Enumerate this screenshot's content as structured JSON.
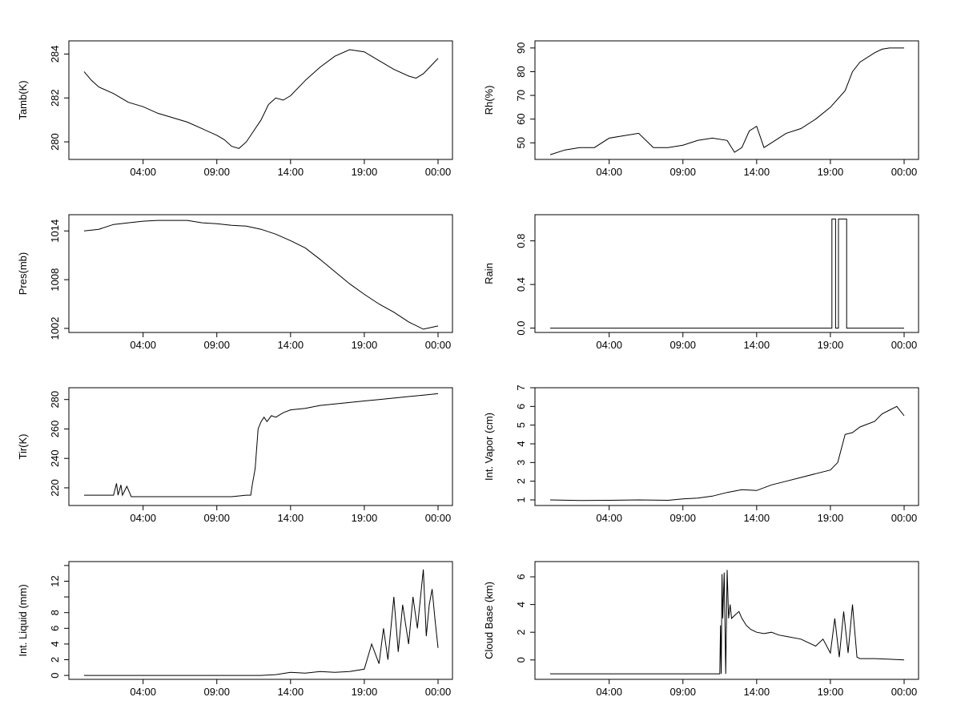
{
  "chart_data": [
    {
      "type": "line",
      "ylabel": "Tamb(K)",
      "xlim": [
        0,
        24
      ],
      "ylim": [
        279.2,
        284.6
      ],
      "yticks": [
        280,
        282,
        284
      ],
      "yticklabels": [
        "280",
        "282",
        "284"
      ],
      "xticks": [
        4,
        9,
        14,
        19,
        24
      ],
      "xticklabels": [
        "04:00",
        "09:00",
        "14:00",
        "19:00",
        "00:00"
      ],
      "x": [
        0,
        0.5,
        1,
        2,
        3,
        4,
        5,
        6,
        7,
        8,
        9,
        9.5,
        10,
        10.5,
        11,
        11.5,
        12,
        12.5,
        13,
        13.5,
        14,
        15,
        16,
        17,
        18,
        19,
        20,
        21,
        22,
        22.5,
        23,
        24
      ],
      "y": [
        283.2,
        282.8,
        282.5,
        282.2,
        281.8,
        281.6,
        281.3,
        281.1,
        280.9,
        280.6,
        280.3,
        280.1,
        279.8,
        279.7,
        280,
        280.5,
        281,
        281.7,
        282,
        281.9,
        282.1,
        282.8,
        283.4,
        283.9,
        284.2,
        284.1,
        283.7,
        283.3,
        283,
        282.9,
        283.1,
        283.8
      ]
    },
    {
      "type": "line",
      "ylabel": "Rh(%)",
      "xlim": [
        0,
        24
      ],
      "ylim": [
        43,
        93
      ],
      "yticks": [
        50,
        60,
        70,
        80,
        90
      ],
      "yticklabels": [
        "50",
        "60",
        "70",
        "80",
        "90"
      ],
      "xticks": [
        4,
        9,
        14,
        19,
        24
      ],
      "xticklabels": [
        "04:00",
        "09:00",
        "14:00",
        "19:00",
        "00:00"
      ],
      "x": [
        0,
        1,
        2,
        3,
        4,
        5,
        6,
        7,
        8,
        9,
        10,
        11,
        12,
        12.5,
        13,
        13.5,
        14,
        14.5,
        15,
        16,
        17,
        18,
        19,
        20,
        20.5,
        21,
        22,
        22.5,
        23,
        24
      ],
      "y": [
        45,
        47,
        48,
        48,
        52,
        53,
        54,
        48,
        48,
        49,
        51,
        52,
        51,
        46,
        48,
        55,
        57,
        48,
        50,
        54,
        56,
        60,
        65,
        72,
        80,
        84,
        88,
        89.5,
        90,
        90
      ]
    },
    {
      "type": "line",
      "ylabel": "Pres(mb)",
      "xlim": [
        0,
        24
      ],
      "ylim": [
        1001.5,
        1016
      ],
      "yticks": [
        1002,
        1008,
        1014
      ],
      "yticklabels": [
        "1002",
        "1008",
        "1014"
      ],
      "xticks": [
        4,
        9,
        14,
        19,
        24
      ],
      "xticklabels": [
        "04:00",
        "09:00",
        "14:00",
        "19:00",
        "00:00"
      ],
      "x": [
        0,
        1,
        2,
        3,
        4,
        5,
        6,
        7,
        8,
        9,
        10,
        11,
        12,
        13,
        14,
        15,
        16,
        17,
        18,
        19,
        20,
        21,
        22,
        23,
        24
      ],
      "y": [
        1014,
        1014.2,
        1014.8,
        1015,
        1015.2,
        1015.3,
        1015.3,
        1015.3,
        1015,
        1014.9,
        1014.7,
        1014.6,
        1014.2,
        1013.6,
        1012.8,
        1011.9,
        1010.5,
        1009,
        1007.5,
        1006.2,
        1005,
        1004,
        1002.8,
        1001.9,
        1002.3
      ]
    },
    {
      "type": "line",
      "ylabel": "Rain",
      "xlim": [
        0,
        24
      ],
      "ylim": [
        -0.04,
        1.04
      ],
      "yticks": [
        0,
        0.4,
        0.8
      ],
      "yticklabels": [
        "0.0",
        "0.4",
        "0.8"
      ],
      "xticks": [
        4,
        9,
        14,
        19,
        24
      ],
      "xticklabels": [
        "04:00",
        "09:00",
        "14:00",
        "19:00",
        "00:00"
      ],
      "x": [
        0,
        19.1,
        19.1,
        19.35,
        19.35,
        19.55,
        19.55,
        20.1,
        20.1,
        20.25,
        20.25,
        24
      ],
      "y": [
        0,
        0,
        1,
        1,
        0,
        0,
        1,
        1,
        0,
        0,
        0,
        0
      ]
    },
    {
      "type": "line",
      "ylabel": "Tir(K)",
      "xlim": [
        0,
        24
      ],
      "ylim": [
        208,
        288
      ],
      "yticks": [
        220,
        240,
        260,
        280
      ],
      "yticklabels": [
        "220",
        "240",
        "260",
        "280"
      ],
      "xticks": [
        4,
        9,
        14,
        19,
        24
      ],
      "xticklabels": [
        "04:00",
        "09:00",
        "14:00",
        "19:00",
        "00:00"
      ],
      "x": [
        0,
        2,
        2.2,
        2.3,
        2.5,
        2.6,
        2.9,
        3.2,
        4,
        6,
        8,
        10,
        11,
        11.3,
        11.4,
        11.6,
        11.8,
        12,
        12.2,
        12.4,
        12.7,
        13,
        13.5,
        14,
        15,
        16,
        17,
        18,
        19,
        20,
        21,
        22,
        23,
        24
      ],
      "y": [
        215,
        215,
        223,
        215,
        222,
        215,
        221,
        214,
        214,
        214,
        214,
        214,
        215,
        215,
        222,
        233,
        260,
        265,
        268,
        265,
        269,
        268,
        271,
        273,
        274,
        276,
        277,
        278,
        279,
        280,
        281,
        282,
        283,
        284
      ]
    },
    {
      "type": "line",
      "ylabel": "Int. Vapor (cm)",
      "xlim": [
        0,
        24
      ],
      "ylim": [
        0.7,
        7
      ],
      "yticks": [
        1,
        2,
        3,
        4,
        5,
        6,
        7
      ],
      "yticklabels": [
        "1",
        "2",
        "3",
        "4",
        "5",
        "6",
        "7"
      ],
      "xticks": [
        4,
        9,
        14,
        19,
        24
      ],
      "xticklabels": [
        "04:00",
        "09:00",
        "14:00",
        "19:00",
        "00:00"
      ],
      "x": [
        0,
        2,
        4,
        6,
        8,
        9,
        10,
        11,
        12,
        13,
        14,
        15,
        16,
        17,
        18,
        19,
        19.5,
        20,
        20.5,
        21,
        22,
        22.5,
        23,
        23.5,
        24
      ],
      "y": [
        1,
        0.97,
        0.98,
        1,
        0.98,
        1.05,
        1.1,
        1.2,
        1.4,
        1.55,
        1.5,
        1.8,
        2,
        2.2,
        2.4,
        2.6,
        3,
        4.5,
        4.6,
        4.9,
        5.2,
        5.6,
        5.8,
        6,
        5.5
      ]
    },
    {
      "type": "line",
      "ylabel": "Int. Liquid (mm)",
      "xlim": [
        0,
        24
      ],
      "ylim": [
        -0.5,
        14.5
      ],
      "yticks": [
        0,
        2,
        4,
        6,
        8,
        10,
        12,
        14
      ],
      "yticklabels": [
        "0",
        "2",
        "4",
        "6",
        "8",
        "",
        "12",
        ""
      ],
      "xticks": [
        4,
        9,
        14,
        19,
        24
      ],
      "xticklabels": [
        "04:00",
        "09:00",
        "14:00",
        "19:00",
        "00:00"
      ],
      "x": [
        0,
        4,
        8,
        12,
        13,
        14,
        15,
        16,
        17,
        18,
        19,
        19.5,
        20,
        20.3,
        20.6,
        21,
        21.3,
        21.6,
        22,
        22.3,
        22.6,
        23,
        23.2,
        23.4,
        23.6,
        23.8,
        24
      ],
      "y": [
        0,
        0,
        0,
        0,
        0.1,
        0.4,
        0.3,
        0.5,
        0.4,
        0.5,
        0.8,
        4,
        1.5,
        6,
        2,
        10,
        3,
        9,
        4,
        10,
        6,
        13.5,
        5,
        9,
        11,
        7,
        3.5
      ]
    },
    {
      "type": "line",
      "ylabel": "Cloud Base (km)",
      "xlim": [
        0,
        24
      ],
      "ylim": [
        -1.4,
        7.1
      ],
      "yticks": [
        0,
        2,
        4,
        6
      ],
      "yticklabels": [
        "0",
        "2",
        "4",
        "6"
      ],
      "xticks": [
        4,
        9,
        14,
        19,
        24
      ],
      "xticklabels": [
        "04:00",
        "09:00",
        "14:00",
        "19:00",
        "00:00"
      ],
      "x": [
        0,
        11.5,
        11.55,
        11.6,
        11.65,
        11.7,
        11.8,
        11.9,
        12.0,
        12.1,
        12.2,
        12.3,
        12.5,
        12.8,
        13,
        13.3,
        13.6,
        14,
        14.5,
        15,
        15.5,
        16,
        17,
        18,
        18.5,
        19,
        19.3,
        19.6,
        19.9,
        20.2,
        20.5,
        20.8,
        21,
        22,
        23,
        24
      ],
      "y": [
        -1,
        -1,
        2.5,
        -1,
        6.2,
        3,
        6.3,
        -1,
        6.5,
        3,
        4,
        3,
        3.2,
        3.5,
        3,
        2.5,
        2.2,
        2,
        1.9,
        2,
        1.8,
        1.7,
        1.5,
        1,
        1.5,
        0.5,
        3,
        0.2,
        3.5,
        0.5,
        4,
        0.2,
        0.1,
        0.1,
        0.05,
        0
      ]
    }
  ]
}
